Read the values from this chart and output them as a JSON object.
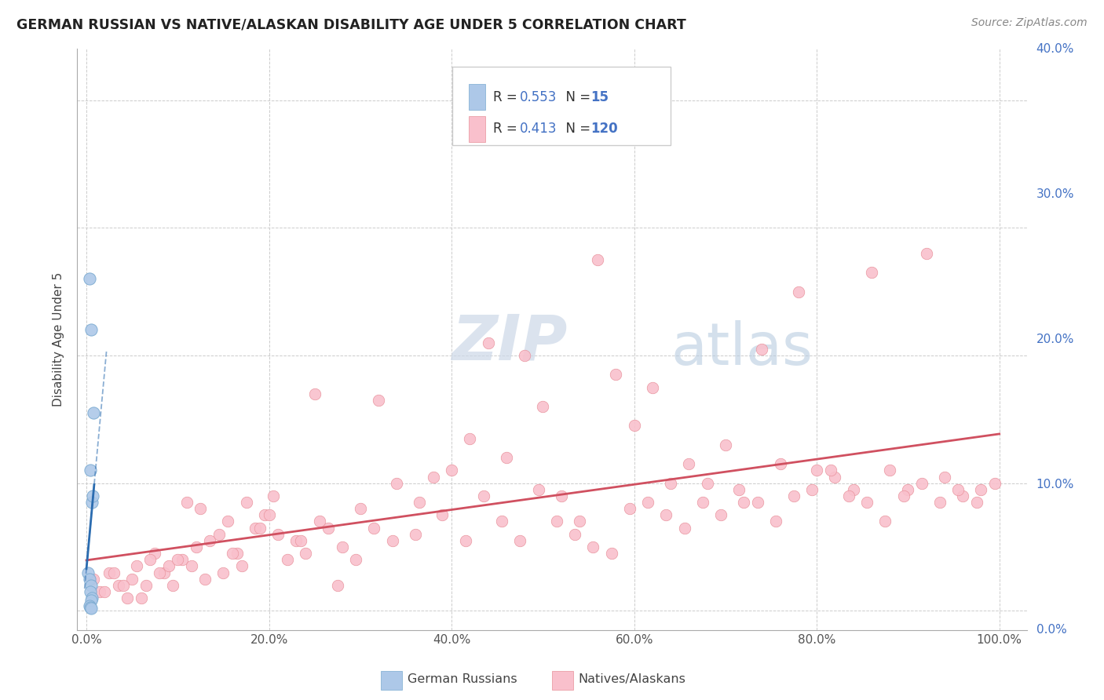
{
  "title": "GERMAN RUSSIAN VS NATIVE/ALASKAN DISABILITY AGE UNDER 5 CORRELATION CHART",
  "source": "Source: ZipAtlas.com",
  "ylabel": "Disability Age Under 5",
  "blue_R": 0.553,
  "blue_N": 15,
  "pink_R": 0.413,
  "pink_N": 120,
  "blue_color": "#adc8e8",
  "blue_edge_color": "#7aaad0",
  "blue_line_color": "#2b6cb0",
  "pink_color": "#f9c0cc",
  "pink_edge_color": "#e8909a",
  "pink_line_color": "#d05060",
  "background_color": "#ffffff",
  "grid_color": "#cccccc",
  "axis_color": "#4472c4",
  "text_color": "#333333",
  "watermark_zip_color": "#ccd8e8",
  "watermark_atlas_color": "#b8cce0",
  "legend_value_color": "#4472c4",
  "legend_label_color": "#333333",
  "blue_scatter_x": [
    0.3,
    0.5,
    0.8,
    0.4,
    0.6,
    0.7,
    0.2,
    0.3,
    0.5,
    0.4,
    0.6,
    0.5,
    0.3,
    0.4,
    0.5
  ],
  "blue_scatter_y": [
    26.0,
    22.0,
    15.5,
    11.0,
    8.5,
    9.0,
    3.0,
    2.5,
    2.0,
    1.5,
    1.0,
    0.8,
    0.4,
    0.3,
    0.2
  ],
  "pink_scatter_x": [
    0.8,
    1.5,
    2.5,
    3.5,
    4.5,
    5.5,
    6.5,
    7.5,
    8.5,
    9.5,
    10.5,
    11.5,
    12.5,
    13.5,
    14.5,
    15.5,
    16.5,
    17.5,
    18.5,
    19.5,
    20.5,
    22.0,
    23.0,
    24.0,
    25.0,
    26.5,
    28.0,
    30.0,
    32.0,
    34.0,
    36.0,
    38.0,
    40.0,
    42.0,
    44.0,
    46.0,
    48.0,
    50.0,
    52.0,
    54.0,
    56.0,
    58.0,
    60.0,
    62.0,
    64.0,
    66.0,
    68.0,
    70.0,
    72.0,
    74.0,
    76.0,
    78.0,
    80.0,
    82.0,
    84.0,
    86.0,
    88.0,
    90.0,
    92.0,
    94.0,
    96.0,
    98.0,
    3.0,
    5.0,
    7.0,
    9.0,
    11.0,
    13.0,
    15.0,
    17.0,
    19.0,
    21.0,
    23.5,
    25.5,
    27.5,
    29.5,
    31.5,
    33.5,
    36.5,
    39.0,
    41.5,
    43.5,
    45.5,
    47.5,
    49.5,
    51.5,
    53.5,
    55.5,
    57.5,
    59.5,
    61.5,
    63.5,
    65.5,
    67.5,
    69.5,
    71.5,
    73.5,
    75.5,
    77.5,
    79.5,
    81.5,
    83.5,
    85.5,
    87.5,
    89.5,
    91.5,
    93.5,
    95.5,
    97.5,
    99.5,
    2.0,
    4.0,
    6.0,
    8.0,
    10.0,
    12.0,
    16.0,
    20.0
  ],
  "pink_scatter_y": [
    2.5,
    1.5,
    3.0,
    2.0,
    1.0,
    3.5,
    2.0,
    4.5,
    3.0,
    2.0,
    4.0,
    3.5,
    8.0,
    5.5,
    6.0,
    7.0,
    4.5,
    8.5,
    6.5,
    7.5,
    9.0,
    4.0,
    5.5,
    4.5,
    17.0,
    6.5,
    5.0,
    8.0,
    16.5,
    10.0,
    6.0,
    10.5,
    11.0,
    13.5,
    21.0,
    12.0,
    20.0,
    16.0,
    9.0,
    7.0,
    27.5,
    18.5,
    14.5,
    17.5,
    10.0,
    11.5,
    10.0,
    13.0,
    8.5,
    20.5,
    11.5,
    25.0,
    11.0,
    10.5,
    9.5,
    26.5,
    11.0,
    9.5,
    28.0,
    10.5,
    9.0,
    9.5,
    3.0,
    2.5,
    4.0,
    3.5,
    8.5,
    2.5,
    3.0,
    3.5,
    6.5,
    6.0,
    5.5,
    7.0,
    2.0,
    4.0,
    6.5,
    5.5,
    8.5,
    7.5,
    5.5,
    9.0,
    7.0,
    5.5,
    9.5,
    7.0,
    6.0,
    5.0,
    4.5,
    8.0,
    8.5,
    7.5,
    6.5,
    8.5,
    7.5,
    9.5,
    8.5,
    7.0,
    9.0,
    9.5,
    11.0,
    9.0,
    8.5,
    7.0,
    9.0,
    10.0,
    8.5,
    9.5,
    8.5,
    10.0,
    1.5,
    2.0,
    1.0,
    3.0,
    4.0,
    5.0,
    4.5,
    7.5
  ],
  "xlim": [
    0,
    100
  ],
  "ylim": [
    0,
    40
  ],
  "xticks": [
    0,
    20,
    40,
    60,
    80,
    100
  ],
  "yticks": [
    0,
    10,
    20,
    30,
    40
  ],
  "xtick_labels": [
    "0.0%",
    "20.0%",
    "40.0%",
    "60.0%",
    "80.0%",
    "100.0%"
  ],
  "ytick_labels": [
    "0.0%",
    "10.0%",
    "20.0%",
    "30.0%",
    "40.0%"
  ]
}
